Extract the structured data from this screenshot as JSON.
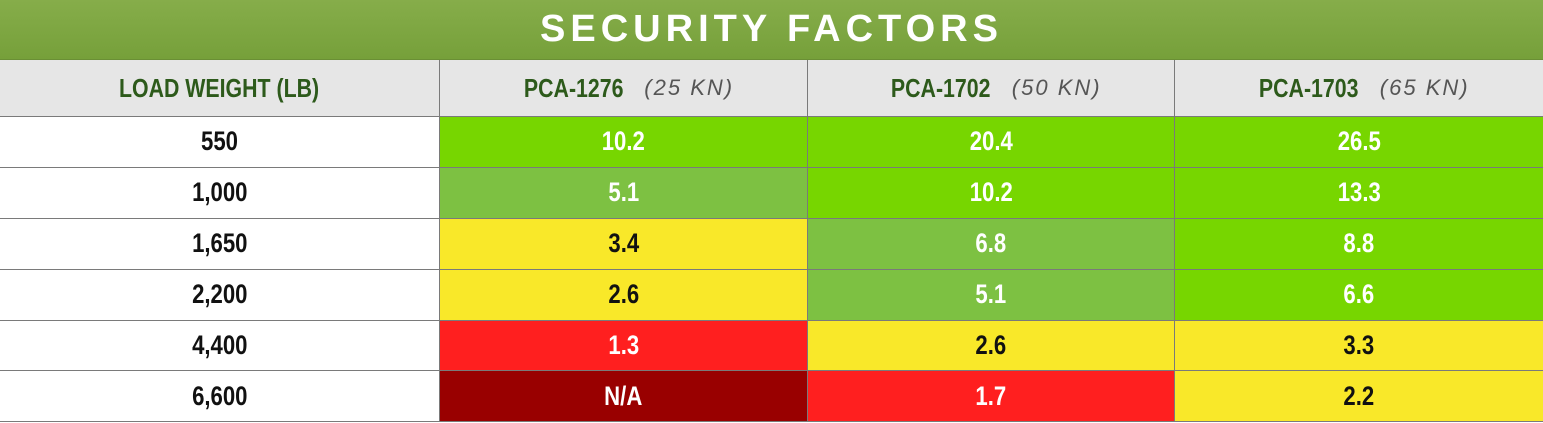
{
  "header": {
    "title": "SECURITY FACTORS"
  },
  "table": {
    "first_column": "LOAD WEIGHT (LB)",
    "columns": [
      {
        "model": "PCA-1276",
        "rating": "(25 KN)"
      },
      {
        "model": "PCA-1702",
        "rating": "(50 KN)"
      },
      {
        "model": "PCA-1703",
        "rating": "(65 KN)"
      }
    ],
    "rows": [
      {
        "weight": "550",
        "values": [
          "10.2",
          "20.4",
          "26.5"
        ],
        "colors": [
          "#77d600",
          "#77d600",
          "#77d600"
        ]
      },
      {
        "weight": "1,000",
        "values": [
          "5.1",
          "10.2",
          "13.3"
        ],
        "colors": [
          "#7dc142",
          "#77d600",
          "#77d600"
        ]
      },
      {
        "weight": "1,650",
        "values": [
          "3.4",
          "6.8",
          "8.8"
        ],
        "colors": [
          "#f9e829",
          "#7dc142",
          "#77d600"
        ]
      },
      {
        "weight": "2,200",
        "values": [
          "2.6",
          "5.1",
          "6.6"
        ],
        "colors": [
          "#f9e829",
          "#7dc142",
          "#77d600"
        ]
      },
      {
        "weight": "4,400",
        "values": [
          "1.3",
          "2.6",
          "3.3"
        ],
        "colors": [
          "#ff1f1f",
          "#f9e829",
          "#f9e829"
        ]
      },
      {
        "weight": "6,600",
        "values": [
          "N/A",
          "1.7",
          "2.2"
        ],
        "colors": [
          "#990000",
          "#ff1f1f",
          "#f9e829"
        ]
      }
    ]
  }
}
